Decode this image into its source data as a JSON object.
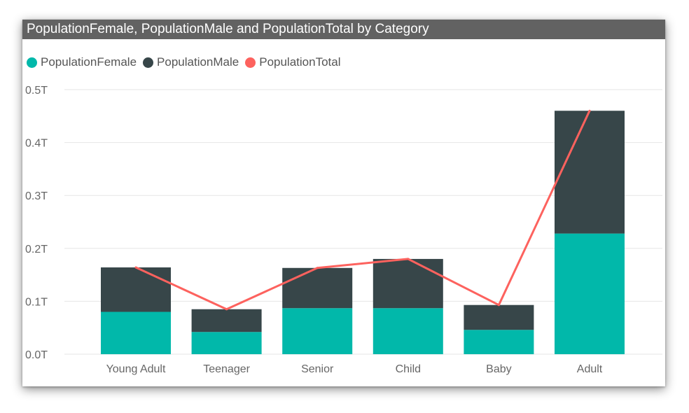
{
  "chart_data": {
    "type": "bar",
    "stacked": true,
    "title": "PopulationFemale, PopulationMale and PopulationTotal by Category",
    "categories": [
      "Young Adult",
      "Teenager",
      "Senior",
      "Child",
      "Baby",
      "Adult"
    ],
    "series": [
      {
        "name": "PopulationFemale",
        "type": "bar",
        "color": "#01B8AA",
        "values": [
          0.08,
          0.042,
          0.087,
          0.087,
          0.046,
          0.228
        ]
      },
      {
        "name": "PopulationMale",
        "type": "bar",
        "color": "#374649",
        "values": [
          0.084,
          0.043,
          0.076,
          0.093,
          0.047,
          0.232
        ]
      },
      {
        "name": "PopulationTotal",
        "type": "line",
        "color": "#FD625E",
        "values": [
          0.164,
          0.085,
          0.163,
          0.18,
          0.093,
          0.46
        ]
      }
    ],
    "yticks": [
      "0.0T",
      "0.1T",
      "0.2T",
      "0.3T",
      "0.4T",
      "0.5T"
    ],
    "ytick_values": [
      0,
      0.1,
      0.2,
      0.3,
      0.4,
      0.5
    ],
    "ylim": [
      0,
      0.5
    ],
    "xlabel": "",
    "ylabel": "",
    "grid": true,
    "legend_position": "top-left"
  }
}
